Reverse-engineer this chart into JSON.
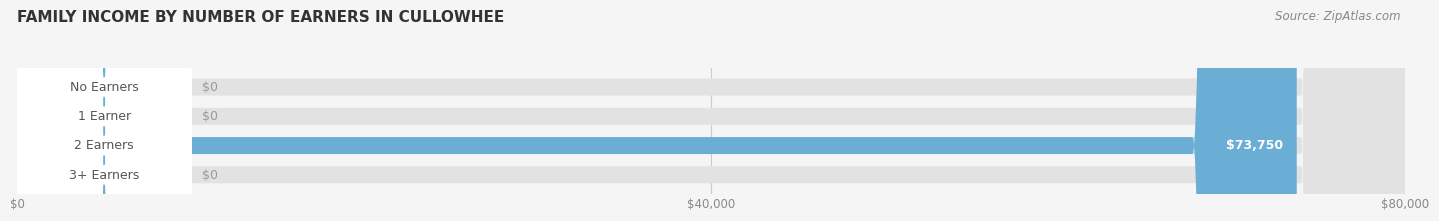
{
  "title": "FAMILY INCOME BY NUMBER OF EARNERS IN CULLOWHEE",
  "categories": [
    "No Earners",
    "1 Earner",
    "2 Earners",
    "3+ Earners"
  ],
  "values": [
    0,
    0,
    73750,
    0
  ],
  "bar_colors": [
    "#f5c49a",
    "#f4a0a0",
    "#6aaed6",
    "#c9aed6"
  ],
  "bg_color": "#f5f5f5",
  "bar_bg_color": "#e2e2e2",
  "value_labels": [
    "$0",
    "$0",
    "$73,750",
    "$0"
  ],
  "xlim": [
    0,
    80000
  ],
  "xtick_values": [
    0,
    40000,
    80000
  ],
  "xtick_labels": [
    "$0",
    "$40,000",
    "$80,000"
  ],
  "source_text": "Source: ZipAtlas.com",
  "title_fontsize": 11,
  "label_fontsize": 9,
  "tick_fontsize": 8.5,
  "source_fontsize": 8.5
}
